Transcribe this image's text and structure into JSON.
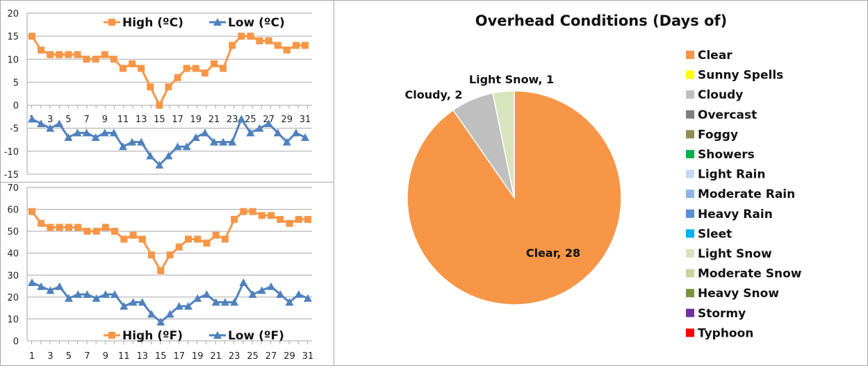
{
  "chart_data": [
    {
      "type": "line",
      "title": "",
      "x": [
        1,
        2,
        3,
        4,
        5,
        6,
        7,
        8,
        9,
        10,
        11,
        12,
        13,
        14,
        15,
        16,
        17,
        18,
        19,
        20,
        21,
        22,
        23,
        24,
        25,
        26,
        27,
        28,
        29,
        30,
        31
      ],
      "x_tick_labels": [
        "1",
        "3",
        "5",
        "7",
        "9",
        "11",
        "13",
        "15",
        "17",
        "19",
        "21",
        "23",
        "25",
        "27",
        "29",
        "31"
      ],
      "ylim": [
        -15,
        20
      ],
      "y_ticks": [
        20,
        15,
        10,
        5,
        0,
        -5,
        -10,
        -15
      ],
      "grid": true,
      "legend_position": "top",
      "series": [
        {
          "name": "High (ºC)",
          "color": "#f79646",
          "marker": "square",
          "values": [
            15,
            12,
            11,
            11,
            11,
            11,
            10,
            10,
            11,
            10,
            8,
            9,
            8,
            4,
            0,
            4,
            6,
            8,
            8,
            7,
            9,
            8,
            13,
            15,
            15,
            14,
            14,
            13,
            12,
            13,
            13
          ]
        },
        {
          "name": "Low (ºC)",
          "color": "#4f81bd",
          "marker": "triangle",
          "values": [
            -3,
            -4,
            -5,
            -4,
            -7,
            -6,
            -6,
            -7,
            -6,
            -6,
            -9,
            -8,
            -8,
            -11,
            -13,
            -11,
            -9,
            -9,
            -7,
            -6,
            -8,
            -8,
            -8,
            -3,
            -6,
            -5,
            -4,
            -6,
            -8,
            -6,
            -7
          ]
        }
      ]
    },
    {
      "type": "line",
      "title": "",
      "x": [
        1,
        2,
        3,
        4,
        5,
        6,
        7,
        8,
        9,
        10,
        11,
        12,
        13,
        14,
        15,
        16,
        17,
        18,
        19,
        20,
        21,
        22,
        23,
        24,
        25,
        26,
        27,
        28,
        29,
        30,
        31
      ],
      "x_tick_labels": [
        "1",
        "3",
        "5",
        "7",
        "9",
        "11",
        "13",
        "15",
        "17",
        "19",
        "21",
        "23",
        "25",
        "27",
        "29",
        "31"
      ],
      "ylim": [
        0,
        70
      ],
      "y_ticks": [
        70,
        60,
        50,
        40,
        30,
        20,
        10,
        0
      ],
      "grid": true,
      "legend_position": "bottom",
      "series": [
        {
          "name": "High (ºF)",
          "color": "#f79646",
          "marker": "square",
          "values": [
            59,
            53.6,
            51.8,
            51.8,
            51.8,
            51.8,
            50,
            50,
            51.8,
            50,
            46.4,
            48.2,
            46.4,
            39.2,
            32,
            39.2,
            42.8,
            46.4,
            46.4,
            44.6,
            48.2,
            46.4,
            55.4,
            59,
            59,
            57.2,
            57.2,
            55.4,
            53.6,
            55.4,
            55.4
          ]
        },
        {
          "name": "Low (ºF)",
          "color": "#4f81bd",
          "marker": "triangle",
          "values": [
            26.6,
            24.8,
            23,
            24.8,
            19.4,
            21.2,
            21.2,
            19.4,
            21.2,
            21.2,
            15.8,
            17.6,
            17.6,
            12.2,
            8.6,
            12.2,
            15.8,
            15.8,
            19.4,
            21.2,
            17.6,
            17.6,
            17.6,
            26.6,
            21.2,
            23,
            24.8,
            21.2,
            17.6,
            21.2,
            19.4
          ]
        }
      ]
    },
    {
      "type": "pie",
      "title": "Overhead Conditions (Days of)",
      "legend_position": "right",
      "slices": [
        {
          "label": "Clear",
          "value": 28,
          "color": "#f79646",
          "data_label": "Clear, 28"
        },
        {
          "label": "Cloudy",
          "value": 2,
          "color": "#bfbfbf",
          "data_label": "Cloudy, 2"
        },
        {
          "label": "Light Snow",
          "value": 1,
          "color": "#d7e4bd",
          "data_label": "Light Snow, 1"
        }
      ],
      "legend": [
        {
          "label": "Clear",
          "color": "#f79646"
        },
        {
          "label": "Sunny Spells",
          "color": "#ffff00"
        },
        {
          "label": "Cloudy",
          "color": "#bfbfbf"
        },
        {
          "label": "Overcast",
          "color": "#7f7f7f"
        },
        {
          "label": "Foggy",
          "color": "#948a54"
        },
        {
          "label": "Showers",
          "color": "#00b050"
        },
        {
          "label": "Light Rain",
          "color": "#c6d9f1"
        },
        {
          "label": "Moderate Rain",
          "color": "#8db4e2"
        },
        {
          "label": "Heavy Rain",
          "color": "#558ed5"
        },
        {
          "label": "Sleet",
          "color": "#00b0f0"
        },
        {
          "label": "Light Snow",
          "color": "#d7e4bd"
        },
        {
          "label": "Moderate Snow",
          "color": "#c3d69b"
        },
        {
          "label": "Heavy Snow",
          "color": "#77933c"
        },
        {
          "label": "Stormy",
          "color": "#7030a0"
        },
        {
          "label": "Typhoon",
          "color": "#ff0000"
        }
      ]
    }
  ]
}
